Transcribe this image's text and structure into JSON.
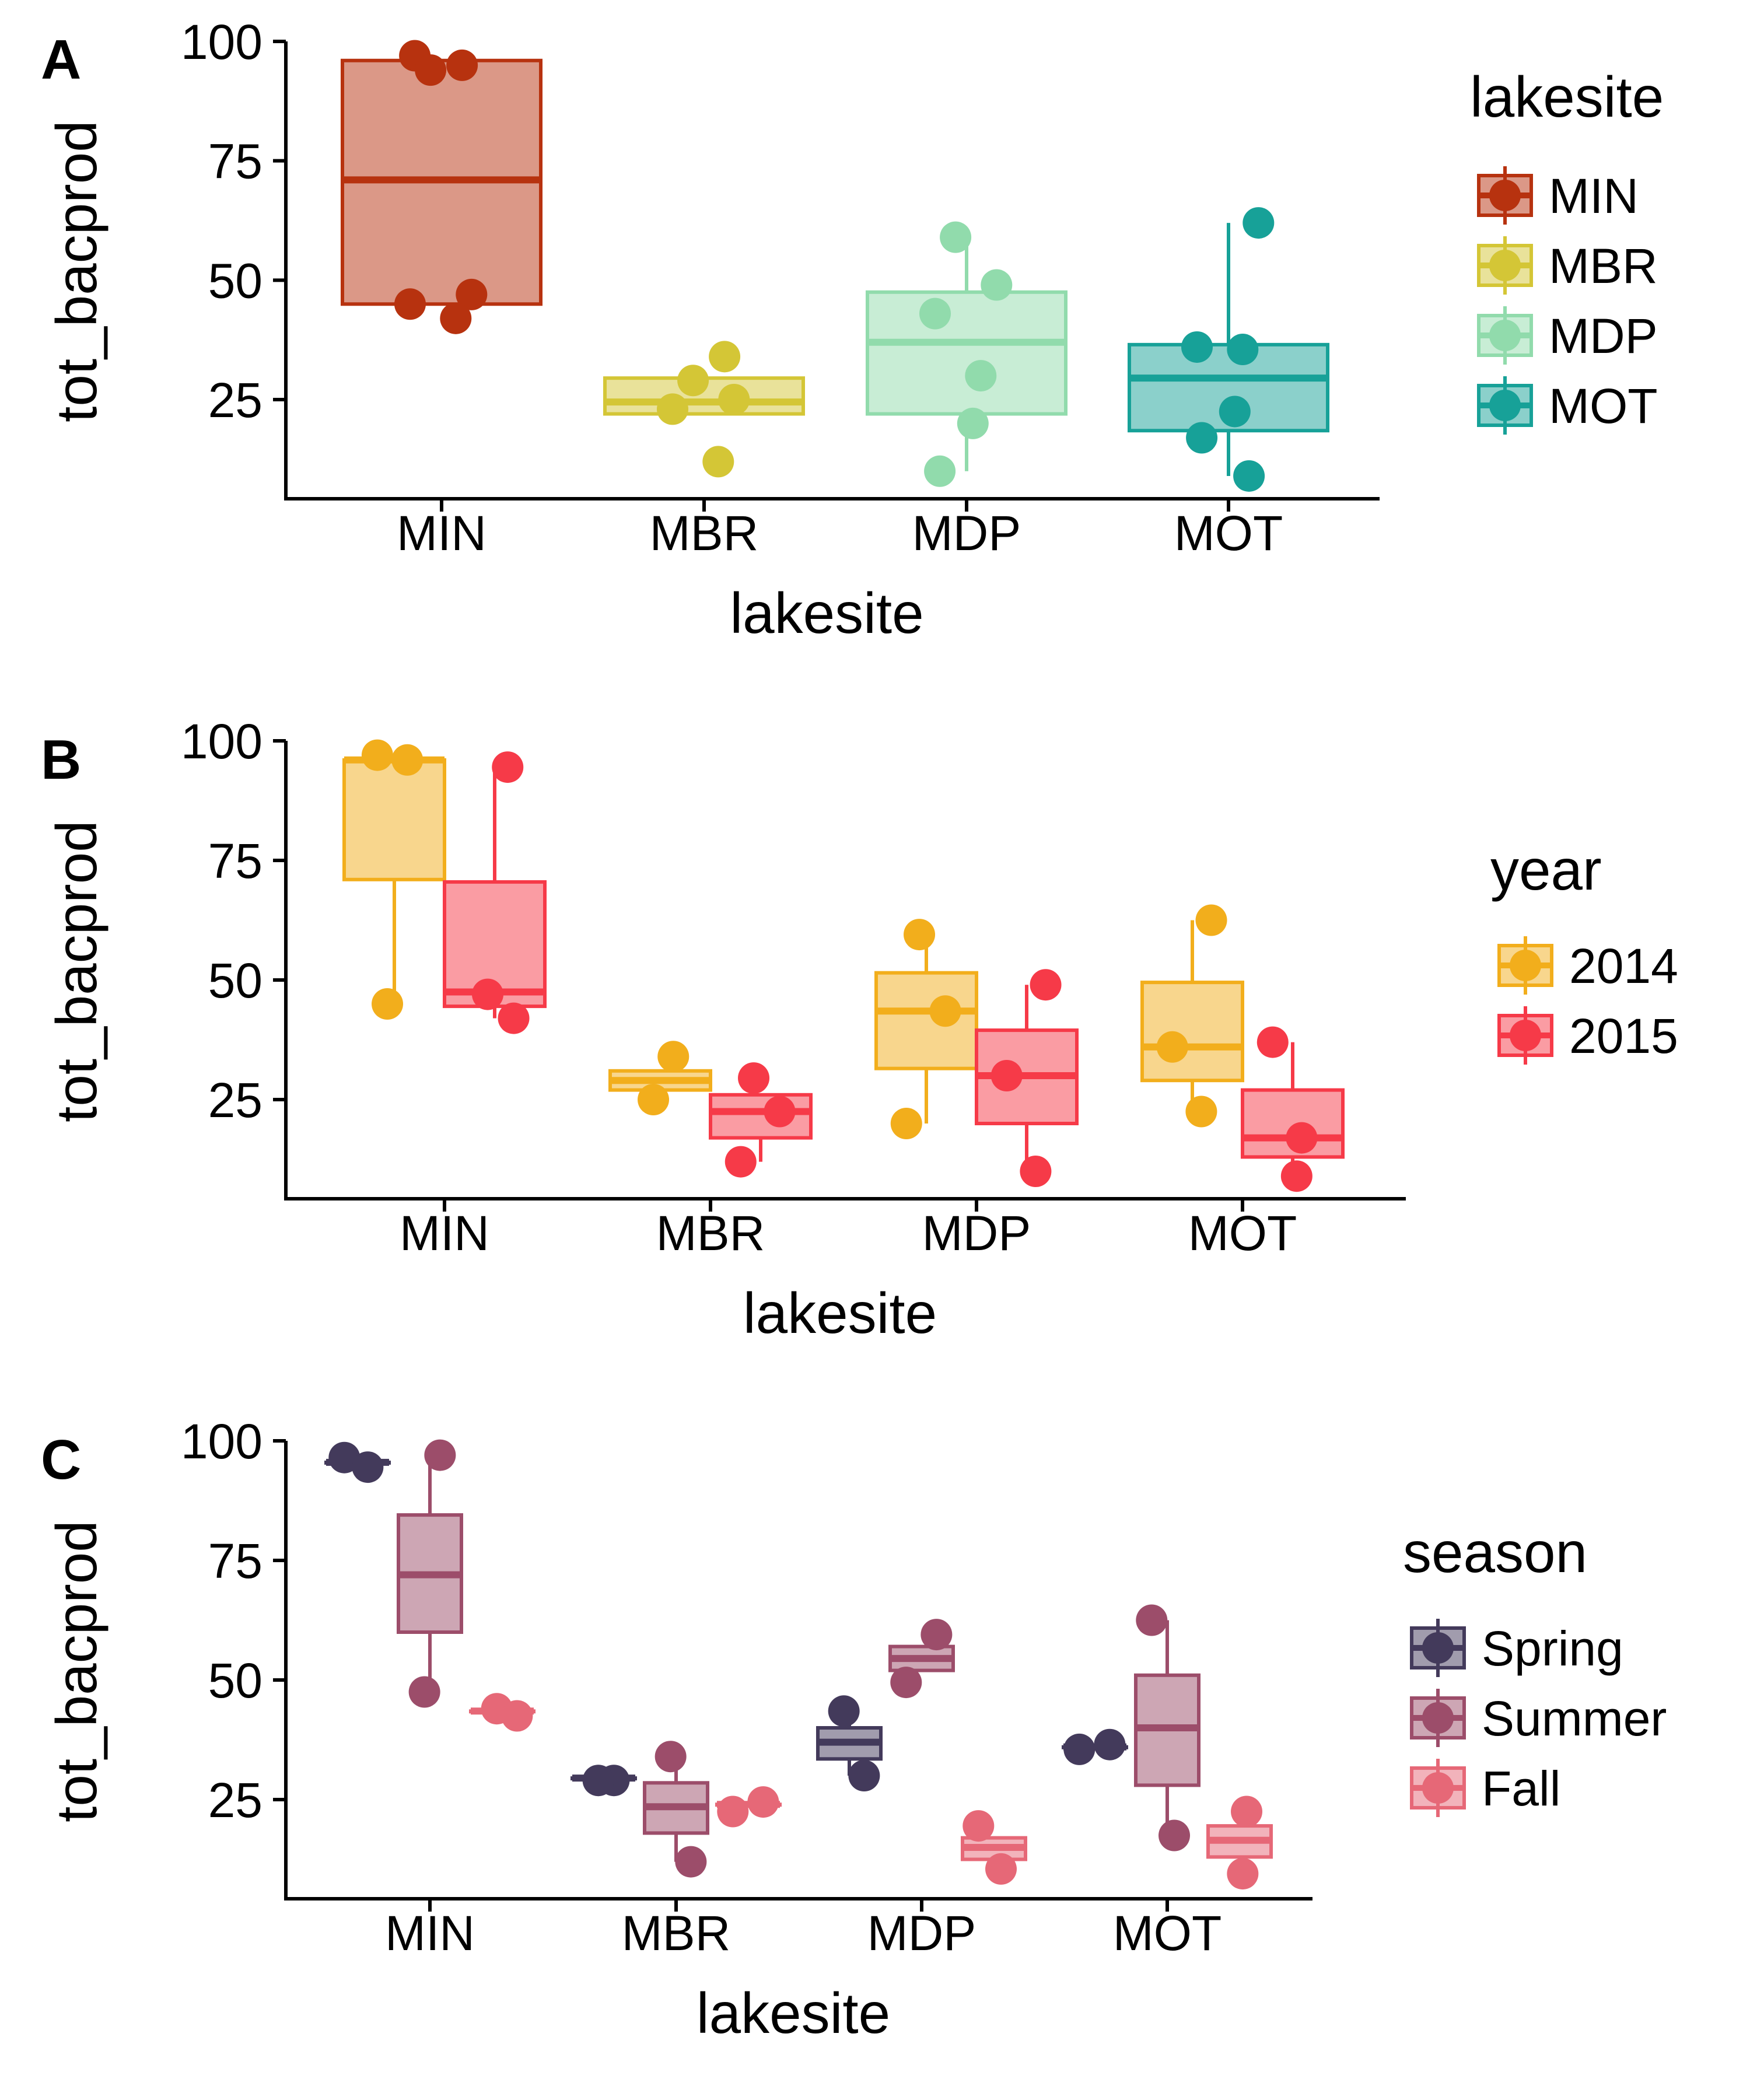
{
  "chart_data": [
    {
      "panel": "A",
      "type": "box",
      "xlabel": "lakesite",
      "ylabel": "tot_bacprod",
      "categories": [
        "MIN",
        "MBR",
        "MDP",
        "MOT"
      ],
      "y_ticks": [
        25,
        50,
        75,
        100
      ],
      "ylim": [
        5,
        100
      ],
      "legend": {
        "title": "lakesite",
        "position": "right",
        "entries": [
          "MIN",
          "MBR",
          "MDP",
          "MOT"
        ]
      },
      "series": [
        {
          "name": "MIN",
          "color": "#b7320f",
          "category": "MIN",
          "box": {
            "lower": 45,
            "q1": 45,
            "median": 71,
            "q3": 96,
            "upper": 96
          },
          "points": [
            97,
            95,
            94,
            47,
            45,
            42
          ]
        },
        {
          "name": "MBR",
          "color": "#d4c636",
          "category": "MBR",
          "box": {
            "lower": 22,
            "q1": 22,
            "median": 24.5,
            "q3": 29.5,
            "upper": 29.5
          },
          "points": [
            34,
            29,
            25,
            23,
            12
          ]
        },
        {
          "name": "MDP",
          "color": "#91dbac",
          "category": "MDP",
          "box": {
            "lower": 10,
            "q1": 22,
            "median": 37,
            "q3": 47.5,
            "upper": 59
          },
          "points": [
            59,
            49,
            43,
            30,
            20,
            10
          ]
        },
        {
          "name": "MOT",
          "color": "#17a198",
          "category": "MOT",
          "box": {
            "lower": 9,
            "q1": 18.5,
            "median": 29.5,
            "q3": 36.5,
            "upper": 62
          },
          "points": [
            62,
            36,
            35.5,
            22.5,
            17,
            9
          ]
        }
      ]
    },
    {
      "panel": "B",
      "type": "box",
      "xlabel": "lakesite",
      "ylabel": "tot_bacprod",
      "categories": [
        "MIN",
        "MBR",
        "MDP",
        "MOT"
      ],
      "y_ticks": [
        25,
        50,
        75,
        100
      ],
      "ylim": [
        5,
        100
      ],
      "legend": {
        "title": "year",
        "position": "right",
        "entries": [
          "2014",
          "2015"
        ]
      },
      "series": [
        {
          "name": "2014",
          "color": "#f2ae1c",
          "groups": [
            {
              "category": "MIN",
              "box": {
                "lower": 45,
                "q1": 71,
                "median": 96,
                "q3": 96,
                "upper": 97
              },
              "points": [
                97,
                96,
                45
              ]
            },
            {
              "category": "MBR",
              "box": {
                "lower": 27,
                "q1": 27,
                "median": 29,
                "q3": 31,
                "upper": 31
              },
              "points": [
                34,
                25
              ]
            },
            {
              "category": "MDP",
              "box": {
                "lower": 20,
                "q1": 31.5,
                "median": 43.5,
                "q3": 51.5,
                "upper": 59.5
              },
              "points": [
                59.5,
                43.5,
                20
              ]
            },
            {
              "category": "MOT",
              "box": {
                "lower": 22.5,
                "q1": 29,
                "median": 36,
                "q3": 49.5,
                "upper": 62.5
              },
              "points": [
                62.5,
                36,
                22.5
              ]
            }
          ]
        },
        {
          "name": "2015",
          "color": "#f63a48",
          "groups": [
            {
              "category": "MIN",
              "box": {
                "lower": 42,
                "q1": 44.5,
                "median": 47.5,
                "q3": 70.5,
                "upper": 94.5
              },
              "points": [
                94.5,
                47,
                42
              ]
            },
            {
              "category": "MBR",
              "box": {
                "lower": 12,
                "q1": 17,
                "median": 22.5,
                "q3": 26,
                "upper": 26
              },
              "points": [
                29.5,
                22.5,
                12
              ]
            },
            {
              "category": "MDP",
              "box": {
                "lower": 10,
                "q1": 20,
                "median": 30,
                "q3": 39.5,
                "upper": 49
              },
              "points": [
                49,
                30,
                10
              ]
            },
            {
              "category": "MOT",
              "box": {
                "lower": 9,
                "q1": 13,
                "median": 17,
                "q3": 27,
                "upper": 37
              },
              "points": [
                37,
                17,
                9
              ]
            }
          ]
        }
      ]
    },
    {
      "panel": "C",
      "type": "box",
      "xlabel": "lakesite",
      "ylabel": "tot_bacprod",
      "categories": [
        "MIN",
        "MBR",
        "MDP",
        "MOT"
      ],
      "y_ticks": [
        25,
        50,
        75,
        100
      ],
      "ylim": [
        5,
        100
      ],
      "legend": {
        "title": "season",
        "position": "right",
        "entries": [
          "Spring",
          "Summer",
          "Fall"
        ]
      },
      "series": [
        {
          "name": "Spring",
          "color": "#433a5b",
          "groups": [
            {
              "category": "MIN",
              "box": {
                "lower": 95.5,
                "q1": 95.5,
                "median": 95.5,
                "q3": 95.5,
                "upper": 95.5
              },
              "points": [
                96.5,
                94.5
              ]
            },
            {
              "category": "MBR",
              "box": {
                "lower": 29.5,
                "q1": 29.5,
                "median": 29.5,
                "q3": 29.5,
                "upper": 29.5
              },
              "points": [
                29,
                29
              ]
            },
            {
              "category": "MDP",
              "box": {
                "lower": 30,
                "q1": 33.5,
                "median": 37,
                "q3": 40,
                "upper": 43
              },
              "points": [
                43.5,
                30
              ]
            },
            {
              "category": "MOT",
              "box": {
                "lower": 36,
                "q1": 36,
                "median": 36,
                "q3": 36,
                "upper": 36
              },
              "points": [
                36.5,
                35.5
              ]
            }
          ]
        },
        {
          "name": "Summer",
          "color": "#9c4d6a",
          "groups": [
            {
              "category": "MIN",
              "box": {
                "lower": 47.5,
                "q1": 60,
                "median": 72,
                "q3": 84.5,
                "upper": 97
              },
              "points": [
                97,
                47.5
              ]
            },
            {
              "category": "MBR",
              "box": {
                "lower": 12,
                "q1": 18,
                "median": 23.5,
                "q3": 28.5,
                "upper": 34
              },
              "points": [
                34,
                12
              ]
            },
            {
              "category": "MDP",
              "box": {
                "lower": 52,
                "q1": 52,
                "median": 54.5,
                "q3": 57,
                "upper": 57
              },
              "points": [
                59.5,
                49.5
              ]
            },
            {
              "category": "MOT",
              "box": {
                "lower": 17.5,
                "q1": 28,
                "median": 40,
                "q3": 51,
                "upper": 62.5
              },
              "points": [
                62.5,
                17.5
              ]
            }
          ]
        },
        {
          "name": "Fall",
          "color": "#e66877",
          "groups": [
            {
              "category": "MIN",
              "box": {
                "lower": 43.5,
                "q1": 43.5,
                "median": 43.5,
                "q3": 43.5,
                "upper": 43.5
              },
              "points": [
                44,
                42.5
              ]
            },
            {
              "category": "MBR",
              "box": {
                "lower": 24,
                "q1": 24,
                "median": 24,
                "q3": 24,
                "upper": 24
              },
              "points": [
                24.5,
                22.5
              ]
            },
            {
              "category": "MDP",
              "box": {
                "lower": 12.5,
                "q1": 12.5,
                "median": 15,
                "q3": 17,
                "upper": 17
              },
              "points": [
                19.5,
                10.5
              ]
            },
            {
              "category": "MOT",
              "box": {
                "lower": 12.5,
                "q1": 13,
                "median": 16.5,
                "q3": 19.5,
                "upper": 19.5
              },
              "points": [
                22.5,
                9.5
              ]
            }
          ]
        }
      ]
    }
  ]
}
